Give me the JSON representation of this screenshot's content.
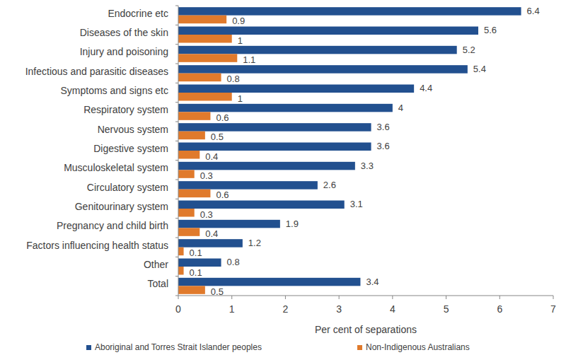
{
  "chart_data": {
    "type": "bar",
    "orientation": "horizontal",
    "x_label": "Per cent of separations",
    "categories": [
      "Endocrine etc",
      "Diseases of the skin",
      "Injury and poisoning",
      "Infectious and parasitic diseases",
      "Symptoms and signs etc",
      "Respiratory system",
      "Nervous system",
      "Digestive system",
      "Musculoskeletal system",
      "Circulatory system",
      "Genitourinary system",
      "Pregnancy and child birth",
      "Factors influencing health status",
      "Other",
      "Total"
    ],
    "series": [
      {
        "name": "Aboriginal and Torres Strait Islander peoples",
        "color": "#22508f",
        "values": [
          6.4,
          5.6,
          5.2,
          5.4,
          4.4,
          4.0,
          3.6,
          3.6,
          3.3,
          2.6,
          3.1,
          1.9,
          1.2,
          0.8,
          3.4
        ]
      },
      {
        "name": "Non-Indigenous Australians",
        "color": "#e07a2c",
        "values": [
          0.9,
          1.0,
          1.1,
          0.8,
          1.0,
          0.6,
          0.5,
          0.4,
          0.3,
          0.6,
          0.3,
          0.4,
          0.1,
          0.1,
          0.5
        ]
      }
    ],
    "xlim": [
      0,
      7
    ],
    "xticks": [
      0,
      1,
      2,
      3,
      4,
      5,
      6,
      7
    ],
    "grid": false,
    "legend": "bottom",
    "data_labels": true
  }
}
